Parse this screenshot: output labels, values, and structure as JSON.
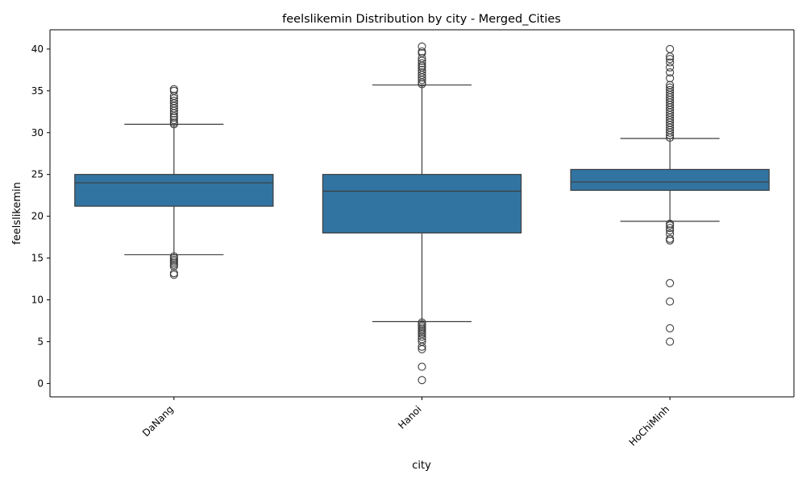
{
  "chart_data": {
    "type": "box",
    "title": "feelslikemin Distribution by city - Merged_Cities",
    "xlabel": "city",
    "ylabel": "feelslikemin",
    "ylim": [
      -1.6,
      42.3
    ],
    "yticks": [
      0,
      5,
      10,
      15,
      20,
      25,
      30,
      35,
      40
    ],
    "categories": [
      "DaNang",
      "Hanoi",
      "HoChiMinh"
    ],
    "box_color": "#3274a1",
    "line_color": "#3d3d3d",
    "boxes": [
      {
        "category": "DaNang",
        "q1": 21.2,
        "median": 24.0,
        "q3": 25.0,
        "whisker_low": 15.4,
        "whisker_high": 31.0,
        "outliers": [
          13.0,
          13.2,
          14.0,
          14.2,
          14.4,
          14.6,
          14.8,
          15.0,
          15.2,
          31.0,
          31.2,
          31.5,
          31.8,
          32.0,
          32.3,
          32.6,
          32.9,
          33.2,
          33.5,
          33.8,
          34.1,
          34.4,
          35.0,
          35.2
        ]
      },
      {
        "category": "Hanoi",
        "q1": 18.0,
        "median": 23.0,
        "q3": 25.0,
        "whisker_low": 7.4,
        "whisker_high": 35.7,
        "outliers": [
          0.4,
          2.0,
          4.1,
          4.4,
          5.0,
          5.3,
          5.6,
          5.9,
          6.1,
          6.3,
          6.5,
          6.7,
          6.9,
          7.1,
          7.3,
          35.8,
          36.0,
          36.3,
          36.6,
          36.9,
          37.2,
          37.5,
          37.8,
          38.0,
          38.3,
          38.6,
          38.9,
          39.5,
          39.7,
          40.3
        ]
      },
      {
        "category": "HoChiMinh",
        "q1": 23.1,
        "median": 24.1,
        "q3": 25.6,
        "whisker_low": 19.4,
        "whisker_high": 29.3,
        "outliers": [
          5.0,
          6.6,
          9.8,
          12.0,
          17.1,
          17.3,
          17.9,
          18.3,
          18.6,
          18.9,
          19.1,
          29.4,
          29.7,
          30.0,
          30.3,
          30.6,
          30.9,
          31.2,
          31.5,
          31.8,
          32.1,
          32.4,
          32.7,
          33.0,
          33.3,
          33.6,
          33.9,
          34.2,
          34.5,
          34.8,
          35.1,
          35.4,
          35.7,
          36.5,
          37.2,
          37.8,
          38.4,
          38.8,
          39.1,
          40.0
        ]
      }
    ]
  }
}
